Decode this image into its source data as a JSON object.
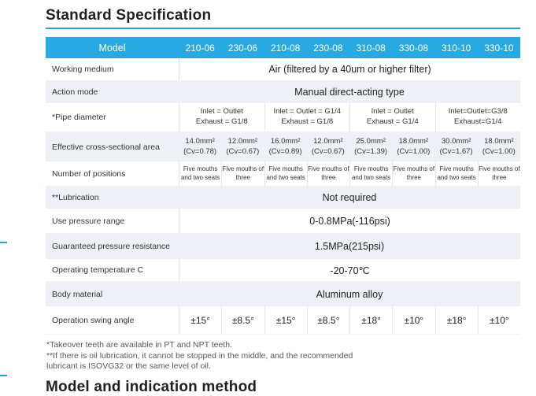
{
  "page": {
    "title": "Standard Specification",
    "partial_next_heading": "Model and indication method"
  },
  "colors": {
    "header_blue": "#29a9e1",
    "accent_blue": "#2b9fd8",
    "light_row": "#edf1f6"
  },
  "spec_table": {
    "header_label": "Model",
    "models": [
      "210-06",
      "230-06",
      "210-08",
      "230-08",
      "310-08",
      "330-08",
      "310-10",
      "330-10"
    ],
    "working_medium": {
      "label": "Working medium",
      "value": "Air (filtered by a 40um or higher filter)"
    },
    "action_mode": {
      "label": "Action mode",
      "value": "Manual direct-acting type"
    },
    "pipe_diameter": {
      "label": "*Pipe diameter",
      "groups": [
        {
          "line1": "Inlet = Outlet",
          "line2": "Exhaust = G1/8"
        },
        {
          "line1": "Inlet = Outlet = G1/4",
          "line2": "Exhaust = G1/8"
        },
        {
          "line1": "Inlet = Outlet",
          "line2": "Exhaust = G1/4"
        },
        {
          "line1": "Inlet=Outlet=G3/8",
          "line2": "Exhaust=G1/4"
        }
      ]
    },
    "effective_area": {
      "label": "Effective cross-sectional area",
      "cells": [
        {
          "line1": "14.0mm²",
          "line2": "(Cv=0.78)"
        },
        {
          "line1": "12.0mm²",
          "line2": "(Cv=0.67)"
        },
        {
          "line1": "16.0mm²",
          "line2": "(Cv=0.89)"
        },
        {
          "line1": "12.0mm²",
          "line2": "(Cv=0.67)"
        },
        {
          "line1": "25.0mm²",
          "line2": "(Cv=1.39)"
        },
        {
          "line1": "18.0mm²",
          "line2": "(Cv=1.00)"
        },
        {
          "line1": "30.0mm²",
          "line2": "(Cv=1.67)"
        },
        {
          "line1": "18.0mm²",
          "line2": "(Cv=1.00)"
        }
      ]
    },
    "positions": {
      "label": "Number of positions",
      "cells": [
        {
          "line1": "Five mouths",
          "line2": "and two seats"
        },
        {
          "line1": "Five mouths of",
          "line2": "three"
        },
        {
          "line1": "Five mouths",
          "line2": "and two seats"
        },
        {
          "line1": "Five mouths of",
          "line2": "three"
        },
        {
          "line1": "Five mouths",
          "line2": "and two seats"
        },
        {
          "line1": "Five mouths of",
          "line2": "three"
        },
        {
          "line1": "Five mouths",
          "line2": "and two seats"
        },
        {
          "line1": "Five mouths of",
          "line2": "three"
        }
      ]
    },
    "lubrication": {
      "label": "**Lubrication",
      "value": "Not required"
    },
    "pressure_range": {
      "label": "Use pressure range",
      "value": "0-0.8MPa(-116psi)"
    },
    "guaranteed_pressure": {
      "label": "Guaranteed pressure resistance",
      "value": "1.5MPa(215psi)"
    },
    "operating_temperature": {
      "label": "Operating temperature C",
      "value": "-20-70℃"
    },
    "body_material": {
      "label": "Body material",
      "value": "Aluminum alloy"
    },
    "swing_angle": {
      "label": "Operation swing angle",
      "values": [
        "±15°",
        "±8.5°",
        "±15°",
        "±8.5°",
        "±18°",
        "±10°",
        "±18°",
        "±10°"
      ]
    }
  },
  "footnotes": [
    "*Takeover teeth are available in PT and NPT teeth.",
    "**If there is oil lubrication, it cannot be stopped in the middle, and the recommended",
    "lubricant is ISOVG32 or the same level of oil."
  ]
}
